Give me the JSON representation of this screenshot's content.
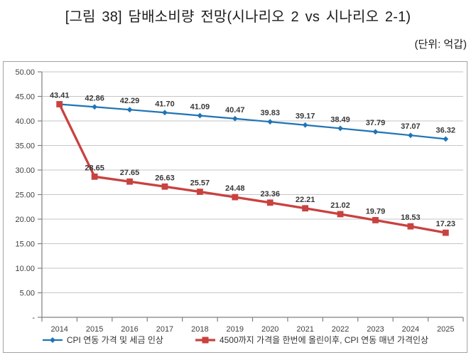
{
  "page": {
    "title": "[그림 38] 담배소비량 전망(시나리오 2 vs 시나리오 2-1)",
    "unit_label": "(단위: 억갑)"
  },
  "colors": {
    "series1_blue": "#1F74B5",
    "series2_red": "#C8423F",
    "gridline": "#C6C6C6",
    "axis": "#808080",
    "label_text": "#383838",
    "chart_border": "#9FA3A7"
  },
  "chart_data": {
    "type": "line",
    "title": "담배소비량 전망(시나리오 2 vs 시나리오 2-1)",
    "unit": "억갑",
    "categories": [
      "2014",
      "2015",
      "2016",
      "2017",
      "2018",
      "2019",
      "2020",
      "2021",
      "2022",
      "2023",
      "2024",
      "2025"
    ],
    "series": [
      {
        "name": "CPI 연동 가격 및 세금 인상",
        "color": "#1F74B5",
        "marker": "diamond",
        "line_width": 2.2,
        "values": [
          43.41,
          42.86,
          42.29,
          41.7,
          41.09,
          40.47,
          39.83,
          39.17,
          38.49,
          37.79,
          37.07,
          36.32
        ]
      },
      {
        "name": "4500까지 가격을 한번에 올린이후, CPI 연동 매년 가격인상",
        "color": "#C8423F",
        "marker": "square",
        "line_width": 3.3,
        "values": [
          43.41,
          28.65,
          27.65,
          26.63,
          25.57,
          24.48,
          23.36,
          22.21,
          21.02,
          19.79,
          18.53,
          17.23
        ]
      }
    ],
    "ylim": [
      0,
      50
    ],
    "ytick_step": 5,
    "ytick_labels": [
      "-",
      "5.00",
      "10.00",
      "15.00",
      "20.00",
      "25.00",
      "30.00",
      "35.00",
      "40.00",
      "45.00",
      "50.00"
    ],
    "grid": true,
    "data_labels": true,
    "legend_position": "bottom"
  }
}
